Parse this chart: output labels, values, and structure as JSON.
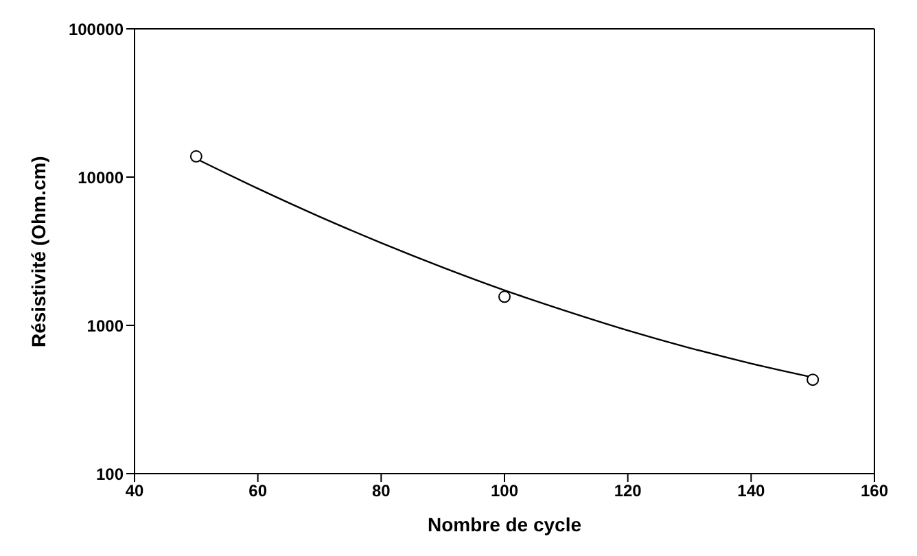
{
  "chart_data": {
    "type": "scatter",
    "xlabel": "Nombre de cycle",
    "ylabel": "Résistivité (Ohm.cm)",
    "log": "y",
    "grid": false,
    "legend": false,
    "xlim": [
      40,
      160
    ],
    "xticks": [
      40,
      60,
      80,
      100,
      120,
      140,
      160
    ],
    "ylim": [
      100,
      100000
    ],
    "yticks": [
      100,
      1000,
      10000,
      100000
    ],
    "series": [
      {
        "marker": "circle",
        "color": "#000000",
        "x": [
          50,
          100,
          150
        ],
        "values": [
          13800,
          1560,
          430
        ]
      },
      {
        "type": "line",
        "marker": "none",
        "line_style": "solid",
        "color": "#000000",
        "x": [
          50,
          60,
          70,
          80,
          90,
          100,
          110,
          120,
          130,
          140,
          150
        ],
        "values": [
          13300,
          8370,
          5410,
          3600,
          2460,
          1725,
          1250,
          925,
          705,
          553,
          446
        ]
      }
    ]
  }
}
